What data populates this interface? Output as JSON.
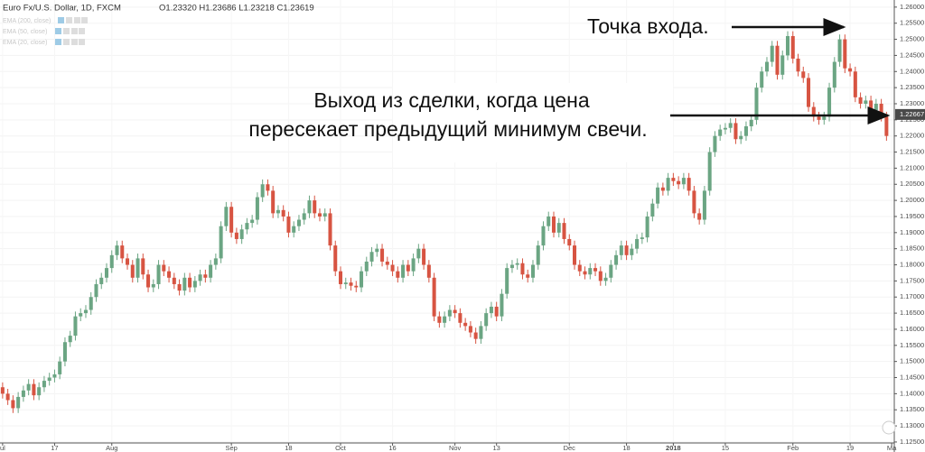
{
  "chart_data": {
    "type": "candlestick",
    "title": "Euro Fx/U.S. Dollar, 1D, FXCM",
    "ohlc_text": "O1.23320 H1.23686 L1.23218 C1.23619",
    "indicators": [
      "EMA (200, close)",
      "EMA (50, close)",
      "EMA (20, close)"
    ],
    "annotations": [
      "Точка входа.",
      "Выход из сделки, когда цена",
      "пересекает предыдущий минимум свечи."
    ],
    "last_price": 1.22667,
    "up_color": "#6ba583",
    "down_color": "#d75442",
    "grid": true,
    "xlim": [
      -0.5,
      171.5
    ],
    "xticks": [
      {
        "value": 0,
        "label": "ul"
      },
      {
        "value": 10,
        "label": "17"
      },
      {
        "value": 21,
        "label": "Aug"
      },
      {
        "value": 44,
        "label": "Sep"
      },
      {
        "value": 55,
        "label": "18"
      },
      {
        "value": 65,
        "label": "Oct"
      },
      {
        "value": 75,
        "label": "16"
      },
      {
        "value": 87,
        "label": "Nov"
      },
      {
        "value": 95,
        "label": "13"
      },
      {
        "value": 109,
        "label": "Dec"
      },
      {
        "value": 120,
        "label": "18"
      },
      {
        "value": 129,
        "label": "2018"
      },
      {
        "value": 139,
        "label": "15"
      },
      {
        "value": 152,
        "label": "Feb"
      },
      {
        "value": 163,
        "label": "19"
      },
      {
        "value": 171,
        "label": "Ma"
      }
    ],
    "ylim": [
      1.1247,
      1.2622
    ],
    "yticks": [
      {
        "value": 1.125,
        "label": "1.12500"
      },
      {
        "value": 1.13,
        "label": "1.13000"
      },
      {
        "value": 1.135,
        "label": "1.13500"
      },
      {
        "value": 1.14,
        "label": "1.14000"
      },
      {
        "value": 1.145,
        "label": "1.14500"
      },
      {
        "value": 1.15,
        "label": "1.15000"
      },
      {
        "value": 1.155,
        "label": "1.15500"
      },
      {
        "value": 1.16,
        "label": "1.16000"
      },
      {
        "value": 1.165,
        "label": "1.16500"
      },
      {
        "value": 1.17,
        "label": "1.17000"
      },
      {
        "value": 1.175,
        "label": "1.17500"
      },
      {
        "value": 1.18,
        "label": "1.18000"
      },
      {
        "value": 1.185,
        "label": "1.18500"
      },
      {
        "value": 1.19,
        "label": "1.19000"
      },
      {
        "value": 1.195,
        "label": "1.19500"
      },
      {
        "value": 1.2,
        "label": "1.20000"
      },
      {
        "value": 1.205,
        "label": "1.20500"
      },
      {
        "value": 1.21,
        "label": "1.21000"
      },
      {
        "value": 1.215,
        "label": "1.21500"
      },
      {
        "value": 1.22,
        "label": "1.22000"
      },
      {
        "value": 1.225,
        "label": "1.22500"
      },
      {
        "value": 1.23,
        "label": "1.23000"
      },
      {
        "value": 1.235,
        "label": "1.23500"
      },
      {
        "value": 1.24,
        "label": "1.24000"
      },
      {
        "value": 1.245,
        "label": "1.24500"
      },
      {
        "value": 1.25,
        "label": "1.25000"
      },
      {
        "value": 1.255,
        "label": "1.25500"
      },
      {
        "value": 1.26,
        "label": "1.26000"
      }
    ],
    "open": [
      1.142,
      1.14,
      1.138,
      1.1355,
      1.139,
      1.141,
      1.143,
      1.1395,
      1.142,
      1.144,
      1.145,
      1.146,
      1.15,
      1.156,
      1.158,
      1.164,
      1.165,
      1.166,
      1.17,
      1.174,
      1.176,
      1.179,
      1.183,
      1.186,
      1.182,
      1.18,
      1.176,
      1.182,
      1.177,
      1.173,
      1.174,
      1.18,
      1.178,
      1.176,
      1.174,
      1.172,
      1.176,
      1.173,
      1.175,
      1.177,
      1.176,
      1.18,
      1.182,
      1.192,
      1.198,
      1.19,
      1.188,
      1.191,
      1.193,
      1.194,
      1.201,
      1.205,
      1.203,
      1.196,
      1.197,
      1.195,
      1.19,
      1.192,
      1.194,
      1.196,
      1.2,
      1.196,
      1.195,
      1.196,
      1.186,
      1.178,
      1.174,
      1.1745,
      1.1735,
      1.173,
      1.178,
      1.181,
      1.184,
      1.185,
      1.181,
      1.18,
      1.178,
      1.176,
      1.18,
      1.178,
      1.182,
      1.185,
      1.18,
      1.176,
      1.164,
      1.162,
      1.164,
      1.166,
      1.165,
      1.162,
      1.161,
      1.159,
      1.157,
      1.161,
      1.165,
      1.167,
      1.164,
      1.171,
      1.179,
      1.18,
      1.1805,
      1.177,
      1.176,
      1.18,
      1.186,
      1.192,
      1.195,
      1.19,
      1.193,
      1.188,
      1.186,
      1.18,
      1.178,
      1.177,
      1.179,
      1.178,
      1.175,
      1.176,
      1.18,
      1.183,
      1.186,
      1.183,
      1.185,
      1.188,
      1.1885,
      1.195,
      1.199,
      1.204,
      1.203,
      1.207,
      1.206,
      1.205,
      1.207,
      1.203,
      1.196,
      1.194,
      1.203,
      1.215,
      1.22,
      1.222,
      1.2225,
      1.224,
      1.219,
      1.22,
      1.223,
      1.225,
      1.235,
      1.24,
      1.243,
      1.248,
      1.239,
      1.245,
      1.251,
      1.244,
      1.24,
      1.238,
      1.229,
      1.226,
      1.225,
      1.226,
      1.235,
      1.243,
      1.25,
      1.241,
      1.24,
      1.232,
      1.23,
      1.231,
      1.228,
      1.23,
      1.226
    ],
    "high": [
      1.1435,
      1.1415,
      1.1395,
      1.1405,
      1.1425,
      1.1445,
      1.1445,
      1.1435,
      1.1455,
      1.1465,
      1.1475,
      1.1515,
      1.1575,
      1.1595,
      1.1655,
      1.1665,
      1.1675,
      1.1715,
      1.1755,
      1.1775,
      1.1805,
      1.1845,
      1.1875,
      1.1875,
      1.1835,
      1.1815,
      1.1835,
      1.1835,
      1.1785,
      1.1755,
      1.1815,
      1.1815,
      1.1795,
      1.1775,
      1.1755,
      1.1775,
      1.1775,
      1.1765,
      1.1785,
      1.1785,
      1.1815,
      1.1835,
      1.1935,
      1.1995,
      1.1995,
      1.1915,
      1.1925,
      1.1945,
      1.1955,
      1.2025,
      1.2065,
      1.2065,
      1.2045,
      1.1985,
      1.1985,
      1.1965,
      1.1935,
      1.1955,
      1.1975,
      1.2015,
      1.2015,
      1.1975,
      1.1975,
      1.1975,
      1.1875,
      1.1795,
      1.176,
      1.176,
      1.175,
      1.1795,
      1.1825,
      1.1855,
      1.1865,
      1.1865,
      1.1825,
      1.1815,
      1.1795,
      1.1815,
      1.1815,
      1.1835,
      1.1865,
      1.1865,
      1.1815,
      1.1775,
      1.1655,
      1.1655,
      1.1675,
      1.1675,
      1.1665,
      1.1635,
      1.1625,
      1.1605,
      1.1625,
      1.1665,
      1.1685,
      1.1685,
      1.1725,
      1.1805,
      1.1815,
      1.182,
      1.182,
      1.1785,
      1.1815,
      1.1875,
      1.1935,
      1.1965,
      1.1965,
      1.1945,
      1.1945,
      1.1895,
      1.1875,
      1.1815,
      1.1795,
      1.1805,
      1.1805,
      1.1795,
      1.1775,
      1.1815,
      1.1845,
      1.1875,
      1.1875,
      1.1865,
      1.1895,
      1.19,
      1.1965,
      1.2005,
      1.2055,
      1.2055,
      1.2085,
      1.2085,
      1.2075,
      1.2085,
      1.2085,
      1.2045,
      1.1975,
      1.2045,
      1.2165,
      1.2215,
      1.2235,
      1.224,
      1.2255,
      1.2255,
      1.2215,
      1.2245,
      1.2265,
      1.2365,
      1.2415,
      1.2445,
      1.2495,
      1.2495,
      1.2465,
      1.2525,
      1.2525,
      1.2455,
      1.2415,
      1.2395,
      1.2305,
      1.2275,
      1.2275,
      1.2365,
      1.2445,
      1.2515,
      1.2515,
      1.2425,
      1.2415,
      1.2335,
      1.2325,
      1.2325,
      1.2315,
      1.2315,
      1.2275
    ],
    "low": [
      1.1385,
      1.1365,
      1.134,
      1.134,
      1.1375,
      1.1395,
      1.138,
      1.138,
      1.1405,
      1.1425,
      1.1435,
      1.1445,
      1.1485,
      1.1545,
      1.1565,
      1.1625,
      1.1635,
      1.1645,
      1.1685,
      1.1725,
      1.1745,
      1.1775,
      1.1815,
      1.1805,
      1.1785,
      1.1745,
      1.1745,
      1.1755,
      1.1715,
      1.1715,
      1.1725,
      1.1765,
      1.1745,
      1.1725,
      1.1705,
      1.1705,
      1.1715,
      1.1715,
      1.1735,
      1.1745,
      1.1745,
      1.1785,
      1.1805,
      1.1905,
      1.1885,
      1.1865,
      1.1865,
      1.1895,
      1.1915,
      1.1925,
      1.1995,
      1.2015,
      1.1945,
      1.1945,
      1.1935,
      1.1885,
      1.1885,
      1.1905,
      1.1925,
      1.1945,
      1.1945,
      1.1935,
      1.1935,
      1.1845,
      1.1765,
      1.1725,
      1.1725,
      1.172,
      1.1715,
      1.1715,
      1.1765,
      1.1795,
      1.1825,
      1.1795,
      1.1785,
      1.1765,
      1.1745,
      1.1745,
      1.1765,
      1.1765,
      1.1805,
      1.1785,
      1.1745,
      1.1625,
      1.1605,
      1.1605,
      1.1625,
      1.1635,
      1.1605,
      1.1595,
      1.1575,
      1.1555,
      1.1555,
      1.1595,
      1.1635,
      1.1625,
      1.1625,
      1.1695,
      1.1775,
      1.1785,
      1.1755,
      1.1745,
      1.1745,
      1.1785,
      1.1845,
      1.1905,
      1.1885,
      1.1885,
      1.1865,
      1.1845,
      1.1785,
      1.1765,
      1.1755,
      1.1755,
      1.1765,
      1.1735,
      1.1735,
      1.1745,
      1.1785,
      1.1815,
      1.1815,
      1.1815,
      1.1835,
      1.1865,
      1.187,
      1.1935,
      1.1975,
      1.2015,
      1.2015,
      1.2045,
      1.2035,
      1.2035,
      1.2015,
      1.1945,
      1.1925,
      1.1925,
      1.2015,
      1.2135,
      1.2185,
      1.2205,
      1.221,
      1.2175,
      1.2175,
      1.2185,
      1.2215,
      1.2235,
      1.2335,
      1.2385,
      1.2415,
      1.2375,
      1.2375,
      1.2435,
      1.2425,
      1.2385,
      1.2365,
      1.2275,
      1.2245,
      1.2235,
      1.2235,
      1.2245,
      1.2335,
      1.2415,
      1.2395,
      1.2385,
      1.2305,
      1.2285,
      1.2285,
      1.2265,
      1.2265,
      1.2245,
      1.2185
    ],
    "close": [
      1.14,
      1.138,
      1.1355,
      1.139,
      1.141,
      1.143,
      1.1395,
      1.142,
      1.144,
      1.145,
      1.146,
      1.15,
      1.156,
      1.158,
      1.164,
      1.165,
      1.166,
      1.17,
      1.174,
      1.176,
      1.179,
      1.183,
      1.186,
      1.182,
      1.18,
      1.176,
      1.182,
      1.177,
      1.173,
      1.174,
      1.18,
      1.178,
      1.176,
      1.174,
      1.172,
      1.176,
      1.173,
      1.175,
      1.177,
      1.176,
      1.18,
      1.182,
      1.192,
      1.198,
      1.19,
      1.188,
      1.191,
      1.193,
      1.194,
      1.201,
      1.205,
      1.203,
      1.196,
      1.197,
      1.195,
      1.19,
      1.192,
      1.194,
      1.196,
      1.2,
      1.196,
      1.195,
      1.196,
      1.186,
      1.178,
      1.174,
      1.1745,
      1.1735,
      1.173,
      1.178,
      1.181,
      1.184,
      1.185,
      1.181,
      1.18,
      1.178,
      1.176,
      1.18,
      1.178,
      1.182,
      1.185,
      1.18,
      1.176,
      1.164,
      1.162,
      1.164,
      1.166,
      1.165,
      1.162,
      1.161,
      1.159,
      1.157,
      1.161,
      1.165,
      1.167,
      1.164,
      1.171,
      1.179,
      1.18,
      1.1805,
      1.177,
      1.176,
      1.18,
      1.186,
      1.192,
      1.195,
      1.19,
      1.193,
      1.188,
      1.186,
      1.18,
      1.178,
      1.177,
      1.179,
      1.178,
      1.175,
      1.176,
      1.18,
      1.183,
      1.186,
      1.183,
      1.185,
      1.188,
      1.1885,
      1.195,
      1.199,
      1.204,
      1.203,
      1.207,
      1.206,
      1.205,
      1.207,
      1.203,
      1.196,
      1.194,
      1.203,
      1.215,
      1.22,
      1.222,
      1.2225,
      1.224,
      1.219,
      1.22,
      1.223,
      1.225,
      1.235,
      1.24,
      1.243,
      1.248,
      1.239,
      1.245,
      1.251,
      1.244,
      1.24,
      1.238,
      1.229,
      1.226,
      1.225,
      1.226,
      1.235,
      1.243,
      1.25,
      1.241,
      1.24,
      1.232,
      1.23,
      1.231,
      1.228,
      1.23,
      1.226,
      1.22
    ]
  }
}
